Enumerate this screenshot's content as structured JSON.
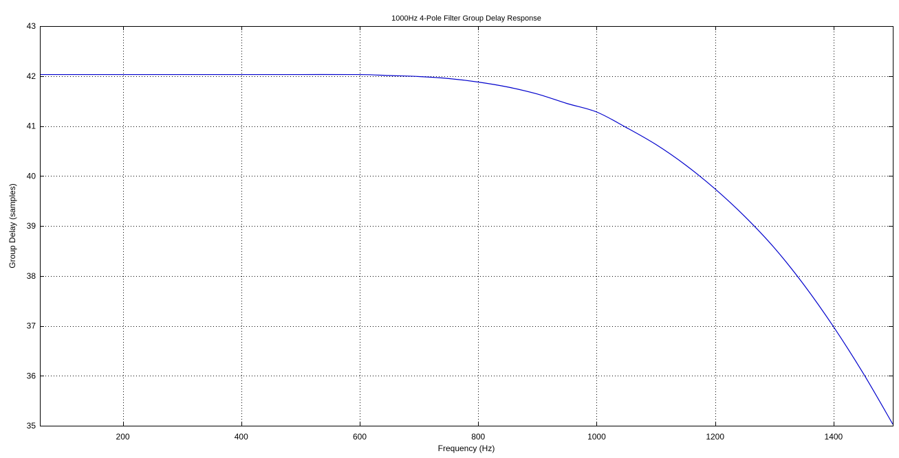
{
  "chart_data": {
    "type": "line",
    "title": "1000Hz 4-Pole Filter Group Delay Response",
    "xlabel": "Frequency (Hz)",
    "ylabel": "Group Delay (samples)",
    "xlim": [
      60,
      1500
    ],
    "ylim": [
      35,
      43
    ],
    "xticks": [
      200,
      400,
      600,
      800,
      1000,
      1200,
      1400
    ],
    "yticks": [
      35,
      36,
      37,
      38,
      39,
      40,
      41,
      42,
      43
    ],
    "grid": true,
    "grid_style": "dotted",
    "series": [
      {
        "color": "#0000cc",
        "x": [
          60,
          100,
          200,
          300,
          400,
          500,
          600,
          650,
          700,
          750,
          800,
          850,
          900,
          950,
          1000,
          1050,
          1100,
          1150,
          1200,
          1250,
          1300,
          1350,
          1400,
          1450,
          1500
        ],
        "y": [
          42.03,
          42.03,
          42.03,
          42.03,
          42.03,
          42.03,
          42.03,
          42.01,
          41.99,
          41.95,
          41.88,
          41.78,
          41.64,
          41.45,
          41.28,
          40.97,
          40.63,
          40.22,
          39.74,
          39.19,
          38.56,
          37.82,
          36.98,
          36.05,
          35.03
        ]
      }
    ]
  }
}
